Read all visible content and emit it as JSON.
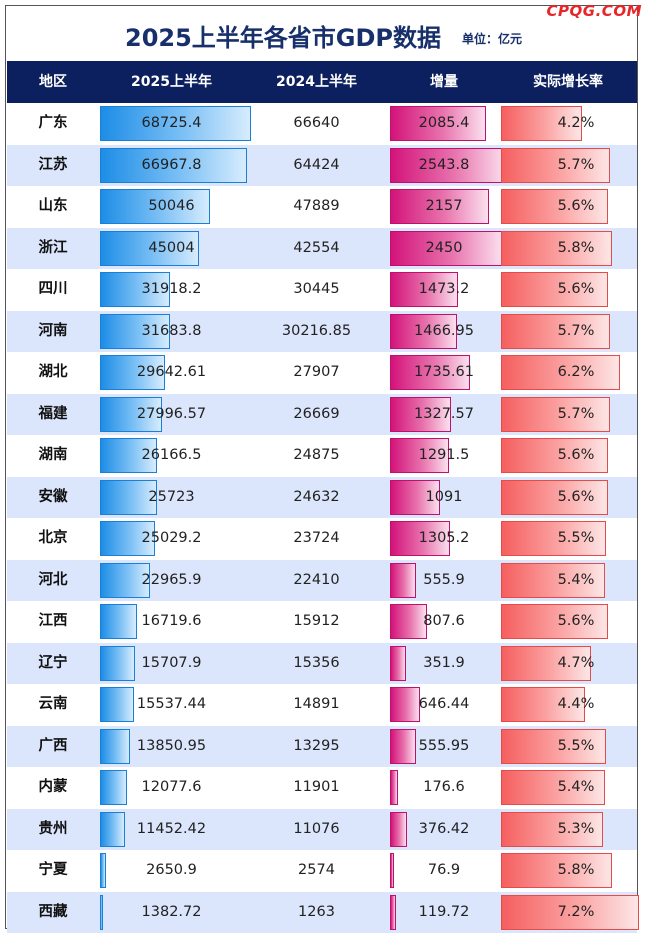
{
  "watermark": "CPQG.COM",
  "title": "2025上半年各省市GDP数据",
  "unit": "单位：亿元",
  "chart_data": {
    "type": "table",
    "columns": [
      "地区",
      "2025上半年",
      "2024上半年",
      "增量",
      "实际增长率"
    ],
    "rows": [
      {
        "region": "广东",
        "gdp2025": "68725.4",
        "gdp2024": "66640",
        "increase": "2085.4",
        "growth": "4.2%"
      },
      {
        "region": "江苏",
        "gdp2025": "66967.8",
        "gdp2024": "64424",
        "increase": "2543.8",
        "growth": "5.7%"
      },
      {
        "region": "山东",
        "gdp2025": "50046",
        "gdp2024": "47889",
        "increase": "2157",
        "growth": "5.6%"
      },
      {
        "region": "浙江",
        "gdp2025": "45004",
        "gdp2024": "42554",
        "increase": "2450",
        "growth": "5.8%"
      },
      {
        "region": "四川",
        "gdp2025": "31918.2",
        "gdp2024": "30445",
        "increase": "1473.2",
        "growth": "5.6%"
      },
      {
        "region": "河南",
        "gdp2025": "31683.8",
        "gdp2024": "30216.85",
        "increase": "1466.95",
        "growth": "5.7%"
      },
      {
        "region": "湖北",
        "gdp2025": "29642.61",
        "gdp2024": "27907",
        "increase": "1735.61",
        "growth": "6.2%"
      },
      {
        "region": "福建",
        "gdp2025": "27996.57",
        "gdp2024": "26669",
        "increase": "1327.57",
        "growth": "5.7%"
      },
      {
        "region": "湖南",
        "gdp2025": "26166.5",
        "gdp2024": "24875",
        "increase": "1291.5",
        "growth": "5.6%"
      },
      {
        "region": "安徽",
        "gdp2025": "25723",
        "gdp2024": "24632",
        "increase": "1091",
        "growth": "5.6%"
      },
      {
        "region": "北京",
        "gdp2025": "25029.2",
        "gdp2024": "23724",
        "increase": "1305.2",
        "growth": "5.5%"
      },
      {
        "region": "河北",
        "gdp2025": "22965.9",
        "gdp2024": "22410",
        "increase": "555.9",
        "growth": "5.4%"
      },
      {
        "region": "江西",
        "gdp2025": "16719.6",
        "gdp2024": "15912",
        "increase": "807.6",
        "growth": "5.6%"
      },
      {
        "region": "辽宁",
        "gdp2025": "15707.9",
        "gdp2024": "15356",
        "increase": "351.9",
        "growth": "4.7%"
      },
      {
        "region": "云南",
        "gdp2025": "15537.44",
        "gdp2024": "14891",
        "increase": "646.44",
        "growth": "4.4%"
      },
      {
        "region": "广西",
        "gdp2025": "13850.95",
        "gdp2024": "13295",
        "increase": "555.95",
        "growth": "5.5%"
      },
      {
        "region": "内蒙",
        "gdp2025": "12077.6",
        "gdp2024": "11901",
        "increase": "176.6",
        "growth": "5.4%"
      },
      {
        "region": "贵州",
        "gdp2025": "11452.42",
        "gdp2024": "11076",
        "increase": "376.42",
        "growth": "5.3%"
      },
      {
        "region": "宁夏",
        "gdp2025": "2650.9",
        "gdp2024": "2574",
        "increase": "76.9",
        "growth": "5.8%"
      },
      {
        "region": "西藏",
        "gdp2025": "1382.72",
        "gdp2024": "1263",
        "increase": "119.72",
        "growth": "7.2%"
      }
    ]
  },
  "colors": {
    "header_bg": "#0c1f5e",
    "title": "#17306b",
    "watermark": "#e8262a",
    "row_alt": "#dbe5fb",
    "gdp_bar": "#1d8de6",
    "increase_bar": "#d3137a",
    "growth_bar": "#f55f5f"
  }
}
